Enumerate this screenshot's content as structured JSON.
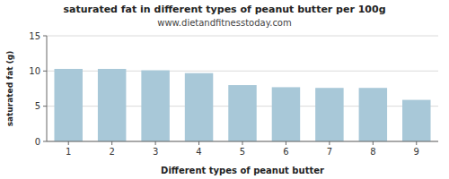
{
  "chart_data": {
    "type": "bar",
    "title": "saturated fat in different types of peanut butter per 100g",
    "subtitle": "www.dietandfitnesstoday.com",
    "xlabel": "Different types of peanut butter",
    "ylabel": "saturated fat (g)",
    "categories": [
      1,
      2,
      3,
      4,
      5,
      6,
      7,
      8,
      9
    ],
    "values": [
      10.3,
      10.3,
      10.1,
      9.7,
      8.0,
      7.7,
      7.6,
      7.6,
      5.9
    ],
    "color": "#a8c8d8",
    "ylim": [
      0,
      15
    ],
    "yticks": [
      0,
      5,
      10,
      15
    ],
    "grid": true
  }
}
